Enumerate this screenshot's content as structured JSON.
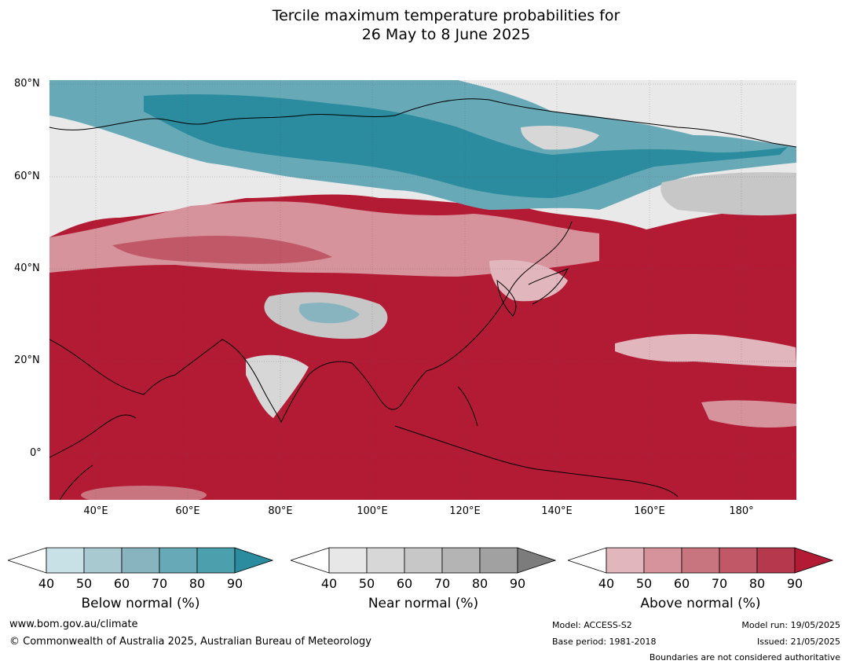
{
  "title": {
    "line1": "Tercile maximum temperature probabilities for",
    "line2": "26 May to 8 June 2025"
  },
  "map": {
    "latitude_labels": [
      "80°N",
      "60°N",
      "40°N",
      "20°N",
      "0°"
    ],
    "longitude_labels": [
      "40°E",
      "60°E",
      "80°E",
      "100°E",
      "120°E",
      "140°E",
      "160°E",
      "180°"
    ],
    "extent": {
      "lon_min": 30,
      "lon_max": 192,
      "lat_min": -10,
      "lat_max": 81
    },
    "dominant_category": "Above normal",
    "colors": {
      "land_outline": "#000000",
      "borders": "#7f7f7f",
      "below_normal": "#2a8c9e",
      "near_normal": "#d7d7d7",
      "above_normal": "#b31b35"
    }
  },
  "colorbars": [
    {
      "name": "below",
      "label": "Below normal (%)",
      "ticks": [
        "40",
        "50",
        "60",
        "70",
        "80",
        "90"
      ],
      "colors": [
        "#c8e1e6",
        "#a8c9cf",
        "#87b4bf",
        "#68a9b7",
        "#4c9fad",
        "#2a8c9e"
      ]
    },
    {
      "name": "near",
      "label": "Near normal (%)",
      "ticks": [
        "40",
        "50",
        "60",
        "70",
        "80",
        "90"
      ],
      "colors": [
        "#e7e7e7",
        "#d7d7d7",
        "#c7c7c7",
        "#b4b4b4",
        "#a1a1a1",
        "#7c7c7c"
      ]
    },
    {
      "name": "above",
      "label": "Above normal (%)",
      "ticks": [
        "40",
        "50",
        "60",
        "70",
        "80",
        "90"
      ],
      "colors": [
        "#e1b6bd",
        "#d6939c",
        "#c87580",
        "#c15867",
        "#b6384c",
        "#b31b35"
      ]
    }
  ],
  "footer": {
    "website": "www.bom.gov.au/climate",
    "copyright": "© Commonwealth of Australia 2025, Australian Bureau of Meteorology",
    "model": "Model: ACCESS-S2",
    "base_period": "Base period: 1981-2018",
    "model_run": "Model run: 19/05/2025",
    "issued": "Issued: 21/05/2025",
    "boundaries_note": "Boundaries are not considered authoritative"
  }
}
